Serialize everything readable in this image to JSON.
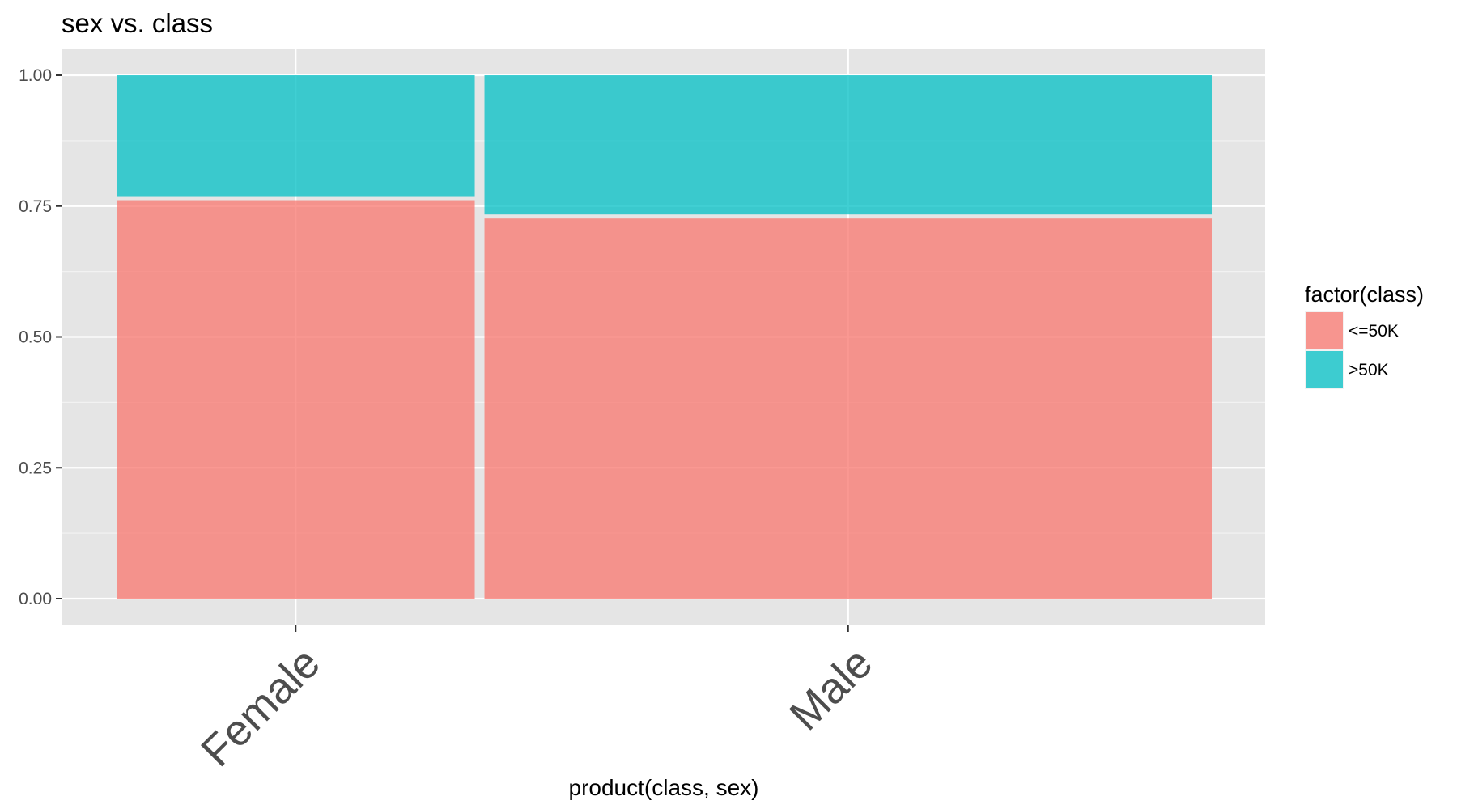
{
  "chart_data": {
    "type": "bar",
    "subtype": "mosaic",
    "title": "sex vs. class",
    "xlabel": "product(class, sex)",
    "ylabel": "",
    "categories": [
      "Female",
      "Male"
    ],
    "category_widths": [
      0.33,
      0.67
    ],
    "series": [
      {
        "name": "<=50K",
        "values": [
          0.765,
          0.73
        ],
        "color": "#F8766D"
      },
      {
        "name": ">50K",
        "values": [
          0.235,
          0.27
        ],
        "color": "#00BFC4"
      }
    ],
    "ylim": [
      -0.05,
      1.05
    ],
    "yticks": [
      "0.00",
      "0.25",
      "0.50",
      "0.75",
      "1.00"
    ],
    "ytick_values": [
      0,
      0.25,
      0.5,
      0.75,
      1.0
    ],
    "legend": {
      "title": "factor(class)",
      "position": "right"
    },
    "grid": true,
    "panel_color": "#E5E5E5"
  }
}
